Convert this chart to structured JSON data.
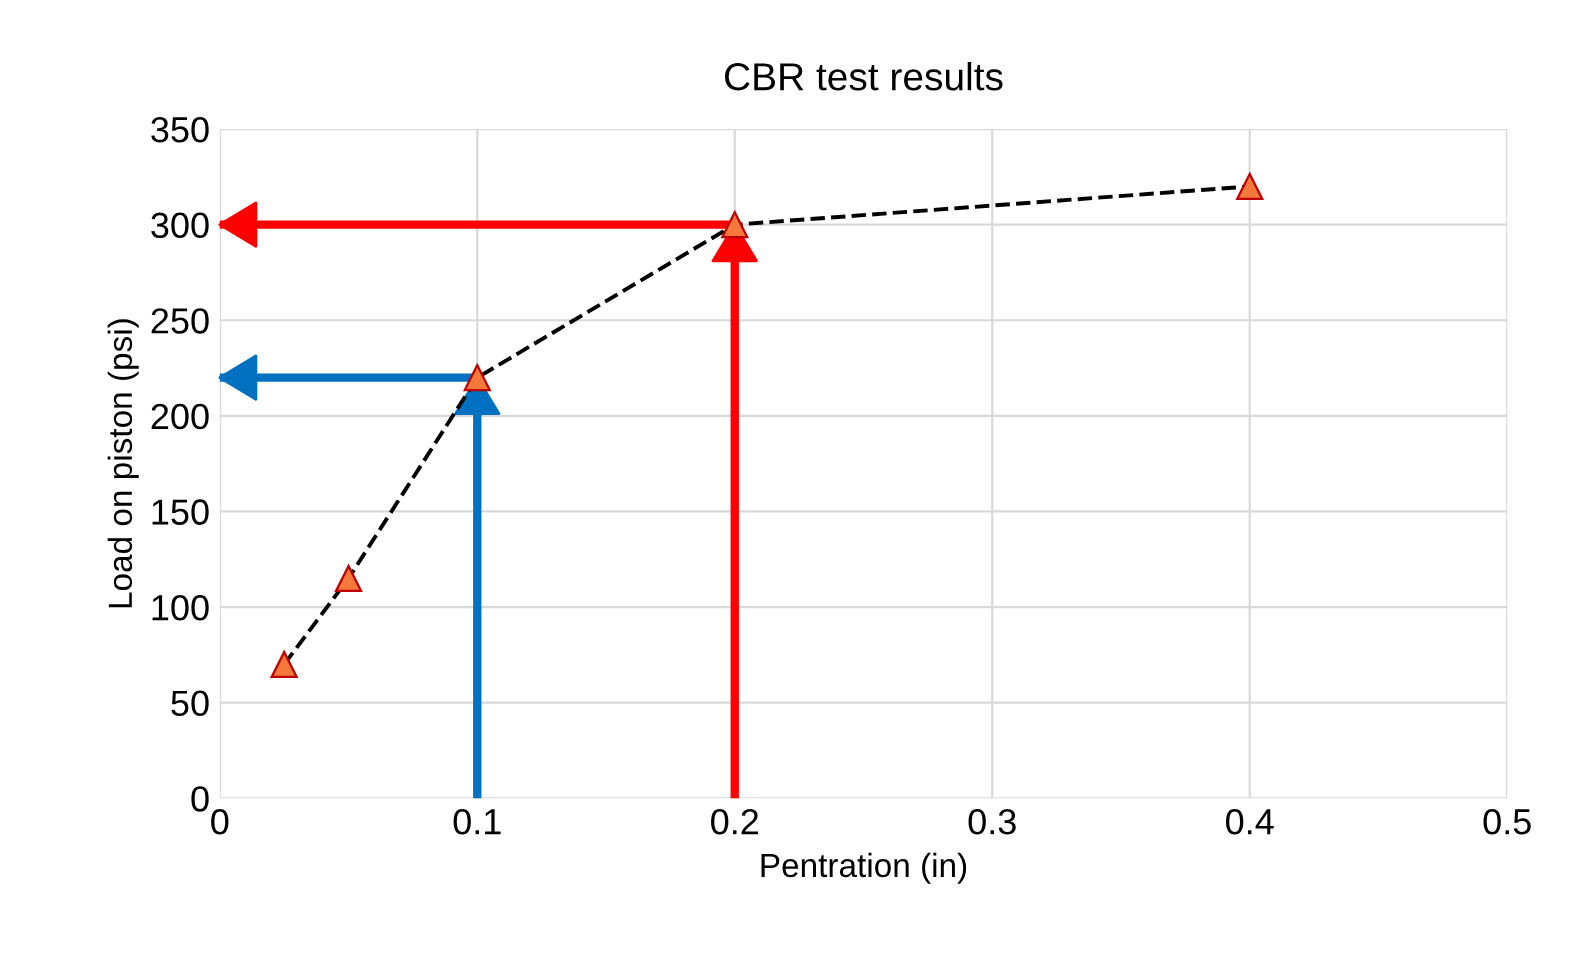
{
  "chart_data": {
    "type": "line",
    "title": "CBR test results",
    "xlabel": "Pentration (in)",
    "ylabel": "Load on piston (psi)",
    "x": [
      0.025,
      0.05,
      0.1,
      0.2,
      0.4
    ],
    "series": [
      {
        "color": "#000000",
        "values": [
          70,
          115,
          220,
          300,
          320
        ]
      },
      {
        "color": "#0070c0",
        "x": [
          0.1,
          0.1
        ],
        "values": [
          0,
          220
        ],
        "marker": "none",
        "line_style": "solid"
      },
      {
        "color": "#0070c0",
        "x": [
          0.1,
          0
        ],
        "values": [
          220,
          220
        ],
        "marker": "none",
        "line_style": "solid"
      },
      {
        "color": "#ff0000",
        "x": [
          0.2,
          0.2
        ],
        "values": [
          0,
          300
        ],
        "marker": "none",
        "line_style": "solid"
      },
      {
        "color": "#ff0000",
        "x": [
          0.2,
          0
        ],
        "values": [
          300,
          300
        ],
        "marker": "none",
        "line_style": "solid"
      }
    ],
    "marker": "triangle",
    "line_style": "dashed",
    "xlim": [
      0,
      0.5
    ],
    "xticks": [
      0,
      0.1,
      0.2,
      0.3,
      0.4,
      0.5
    ],
    "ylim": [
      0,
      350
    ],
    "yticks": [
      0,
      50,
      100,
      150,
      200,
      250,
      300,
      350
    ],
    "grid": true
  }
}
